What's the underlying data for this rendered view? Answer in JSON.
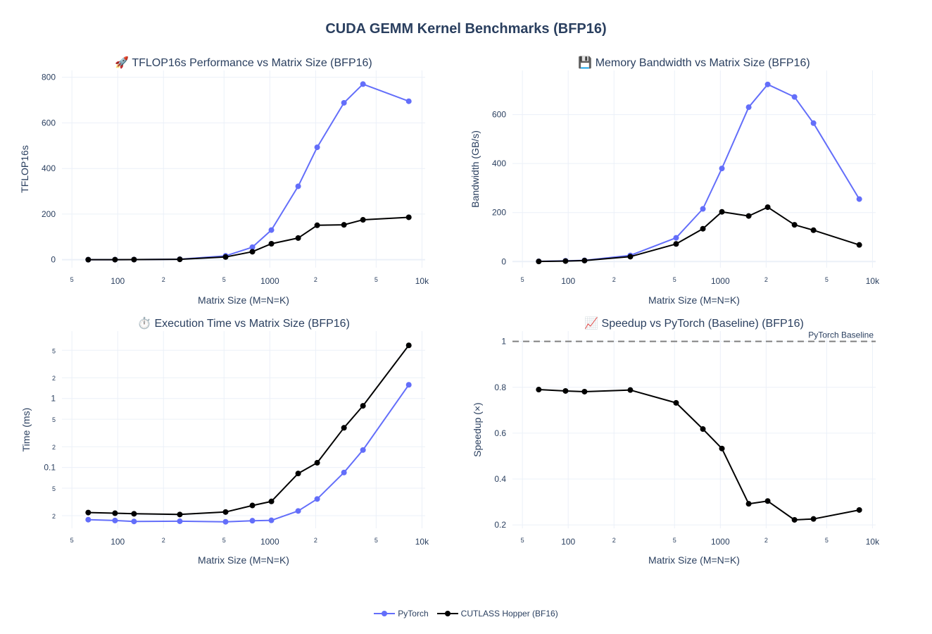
{
  "title": "CUDA GEMM Kernel Benchmarks (BFP16)",
  "colors": {
    "pytorch": "#636efa",
    "cutlass": "#000000",
    "grid": "#ebf0f8",
    "baseline": "#808080"
  },
  "legend": [
    {
      "name": "PyTorch",
      "color": "#636efa"
    },
    {
      "name": "CUTLASS Hopper (BF16)",
      "color": "#000000"
    }
  ],
  "chart_data": [
    {
      "type": "line",
      "title": "🚀 TFLOP16s Performance vs Matrix Size (BFP16)",
      "xlabel": "Matrix Size (M=N=K)",
      "ylabel": "TFLOP16s",
      "xscale": "log",
      "yscale": "linear",
      "xlim": [
        43,
        10500
      ],
      "ylim": [
        -35,
        830
      ],
      "x_ticks": [
        {
          "v": 50,
          "t": "5",
          "minor": true
        },
        {
          "v": 100,
          "t": "100"
        },
        {
          "v": 200,
          "t": "2",
          "minor": true
        },
        {
          "v": 500,
          "t": "5",
          "minor": true
        },
        {
          "v": 1000,
          "t": "1000"
        },
        {
          "v": 2000,
          "t": "2",
          "minor": true
        },
        {
          "v": 5000,
          "t": "5",
          "minor": true
        },
        {
          "v": 10000,
          "t": "10k"
        }
      ],
      "y_ticks": [
        {
          "v": 0,
          "t": "0"
        },
        {
          "v": 200,
          "t": "200"
        },
        {
          "v": 400,
          "t": "400"
        },
        {
          "v": 600,
          "t": "600"
        },
        {
          "v": 800,
          "t": "800"
        }
      ],
      "x": [
        64,
        96,
        128,
        256,
        512,
        768,
        1024,
        1536,
        2048,
        3072,
        4096,
        8192
      ],
      "series": [
        {
          "name": "PyTorch",
          "color": "#636efa",
          "values": [
            0.1,
            0.3,
            0.6,
            2.2,
            17,
            55,
            130,
            322,
            493,
            688,
            770,
            695
          ]
        },
        {
          "name": "CUTLASS Hopper (BF16)",
          "color": "#000000",
          "values": [
            0.1,
            0.2,
            0.5,
            1.7,
            12,
            35,
            70,
            95,
            151,
            153,
            175,
            186
          ]
        }
      ]
    },
    {
      "type": "line",
      "title": "💾 Memory Bandwidth vs Matrix Size (BFP16)",
      "xlabel": "Matrix Size (M=N=K)",
      "ylabel": "Bandwidth (GB/s)",
      "xscale": "log",
      "yscale": "linear",
      "xlim": [
        43,
        10500
      ],
      "ylim": [
        -25,
        780
      ],
      "x_ticks": [
        {
          "v": 50,
          "t": "5",
          "minor": true
        },
        {
          "v": 100,
          "t": "100"
        },
        {
          "v": 200,
          "t": "2",
          "minor": true
        },
        {
          "v": 500,
          "t": "5",
          "minor": true
        },
        {
          "v": 1000,
          "t": "1000"
        },
        {
          "v": 2000,
          "t": "2",
          "minor": true
        },
        {
          "v": 5000,
          "t": "5",
          "minor": true
        },
        {
          "v": 10000,
          "t": "10k"
        }
      ],
      "y_ticks": [
        {
          "v": 0,
          "t": "0"
        },
        {
          "v": 200,
          "t": "200"
        },
        {
          "v": 400,
          "t": "400"
        },
        {
          "v": 600,
          "t": "600"
        }
      ],
      "x": [
        64,
        96,
        128,
        256,
        512,
        768,
        1024,
        1536,
        2048,
        3072,
        4096,
        8192
      ],
      "series": [
        {
          "name": "PyTorch",
          "color": "#636efa",
          "values": [
            1,
            3,
            5,
            25,
            97,
            215,
            380,
            630,
            723,
            672,
            565,
            255
          ]
        },
        {
          "name": "CUTLASS Hopper (BF16)",
          "color": "#000000",
          "values": [
            0.5,
            2,
            4,
            20,
            72,
            134,
            203,
            186,
            222,
            150,
            128,
            68
          ]
        }
      ]
    },
    {
      "type": "line",
      "title": "⏱️ Execution Time vs Matrix Size (BFP16)",
      "xlabel": "Matrix Size (M=N=K)",
      "ylabel": "Time (ms)",
      "xscale": "log",
      "yscale": "log",
      "xlim": [
        43,
        10500
      ],
      "ylim": [
        0.0131,
        9.5
      ],
      "x_ticks": [
        {
          "v": 50,
          "t": "5",
          "minor": true
        },
        {
          "v": 100,
          "t": "100"
        },
        {
          "v": 200,
          "t": "2",
          "minor": true
        },
        {
          "v": 500,
          "t": "5",
          "minor": true
        },
        {
          "v": 1000,
          "t": "1000"
        },
        {
          "v": 2000,
          "t": "2",
          "minor": true
        },
        {
          "v": 5000,
          "t": "5",
          "minor": true
        },
        {
          "v": 10000,
          "t": "10k"
        }
      ],
      "y_ticks": [
        {
          "v": 0.02,
          "t": "2",
          "minor": true
        },
        {
          "v": 0.05,
          "t": "5",
          "minor": true
        },
        {
          "v": 0.1,
          "t": "0.1"
        },
        {
          "v": 0.2,
          "t": "2",
          "minor": true
        },
        {
          "v": 0.5,
          "t": "5",
          "minor": true
        },
        {
          "v": 1,
          "t": "1"
        },
        {
          "v": 2,
          "t": "2",
          "minor": true
        },
        {
          "v": 5,
          "t": "5",
          "minor": true
        }
      ],
      "x": [
        64,
        96,
        128,
        256,
        512,
        768,
        1024,
        1536,
        2048,
        3072,
        4096,
        8192
      ],
      "series": [
        {
          "name": "PyTorch",
          "color": "#636efa",
          "values": [
            0.0175,
            0.017,
            0.0165,
            0.0166,
            0.0163,
            0.0169,
            0.0171,
            0.0234,
            0.0349,
            0.0845,
            0.179,
            1.58
          ]
        },
        {
          "name": "CUTLASS Hopper (BF16)",
          "color": "#000000",
          "values": [
            0.0222,
            0.0217,
            0.0213,
            0.0208,
            0.0226,
            0.0281,
            0.0322,
            0.0818,
            0.117,
            0.376,
            0.783,
            5.9
          ]
        }
      ]
    },
    {
      "type": "line",
      "title": "📈 Speedup vs PyTorch (Baseline) (BFP16)",
      "xlabel": "Matrix Size (M=N=K)",
      "ylabel": "Speedup (×)",
      "xscale": "log",
      "yscale": "linear",
      "xlim": [
        43,
        10500
      ],
      "ylim": [
        0.185,
        1.045
      ],
      "x_ticks": [
        {
          "v": 50,
          "t": "5",
          "minor": true
        },
        {
          "v": 100,
          "t": "100"
        },
        {
          "v": 200,
          "t": "2",
          "minor": true
        },
        {
          "v": 500,
          "t": "5",
          "minor": true
        },
        {
          "v": 1000,
          "t": "1000"
        },
        {
          "v": 2000,
          "t": "2",
          "minor": true
        },
        {
          "v": 5000,
          "t": "5",
          "minor": true
        },
        {
          "v": 10000,
          "t": "10k"
        }
      ],
      "y_ticks": [
        {
          "v": 0.2,
          "t": "0.2"
        },
        {
          "v": 0.4,
          "t": "0.4"
        },
        {
          "v": 0.6,
          "t": "0.6"
        },
        {
          "v": 0.8,
          "t": "0.8"
        },
        {
          "v": 1,
          "t": "1"
        }
      ],
      "x": [
        64,
        96,
        128,
        256,
        512,
        768,
        1024,
        1536,
        2048,
        3072,
        4096,
        8192
      ],
      "series": [
        {
          "name": "CUTLASS Hopper (BF16)",
          "color": "#000000",
          "values": [
            0.79,
            0.784,
            0.781,
            0.788,
            0.732,
            0.618,
            0.533,
            0.292,
            0.304,
            0.222,
            0.226,
            0.265
          ]
        }
      ],
      "baseline": {
        "value": 1,
        "label": "PyTorch Baseline"
      }
    }
  ]
}
